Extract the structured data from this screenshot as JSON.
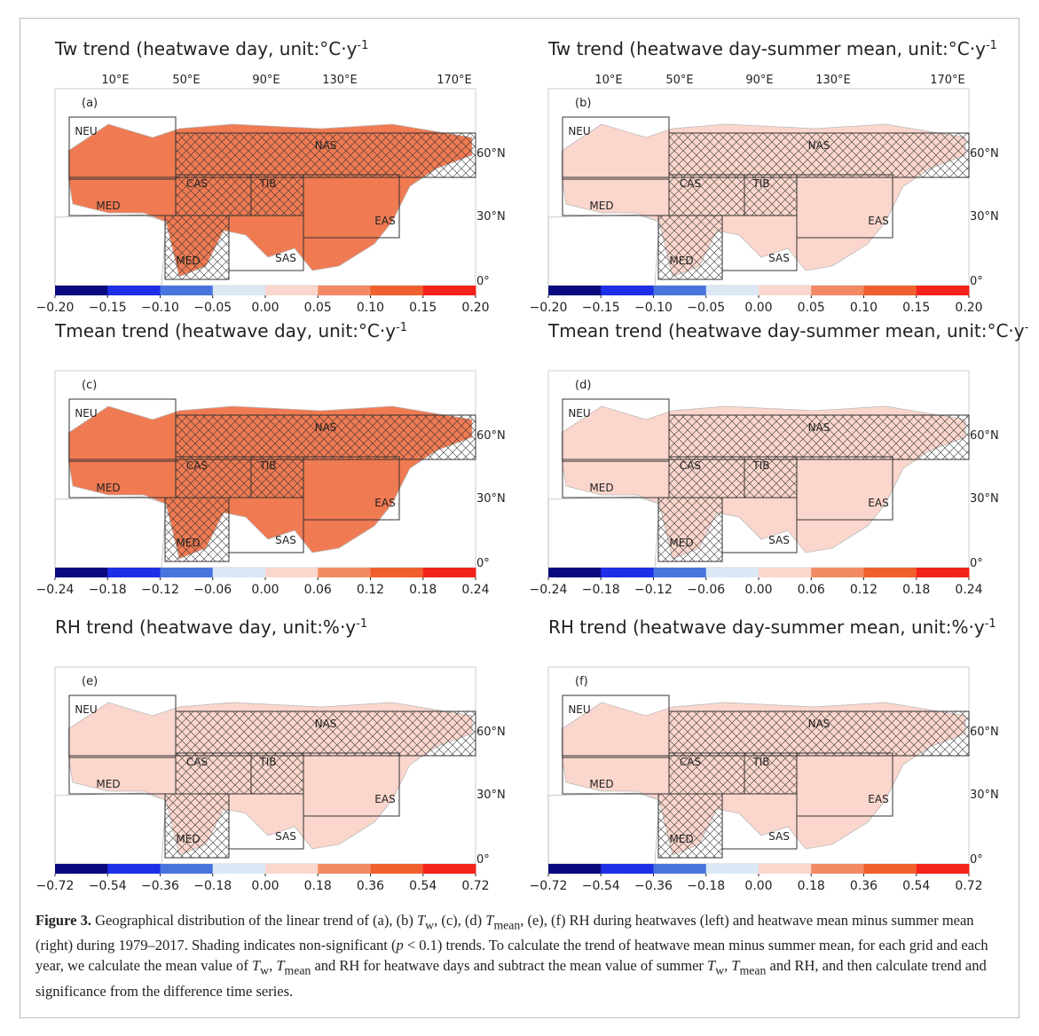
{
  "figure": {
    "lon_labels": [
      "10°E",
      "50°E",
      "90°E",
      "130°E",
      "170°E"
    ],
    "lat_labels": [
      "60°N",
      "30°N",
      "0°"
    ],
    "regions": [
      "NEU",
      "NAS",
      "MED",
      "CAS",
      "TIB",
      "EAS",
      "SAS",
      "MED"
    ],
    "colorbar_colors": [
      "#0a0a7e",
      "#1e2fe8",
      "#4a74dd",
      "#dbe8f5",
      "#fbd6cc",
      "#f28a63",
      "#f0602e",
      "#f2231a"
    ],
    "colorbars": [
      {
        "ticks": [
          {
            "value": -0.2,
            "label": "−0.20"
          },
          {
            "value": -0.15,
            "label": "−0.15"
          },
          {
            "value": -0.1,
            "label": "−0.10"
          },
          {
            "value": -0.05,
            "label": "−0.05"
          },
          {
            "value": 0,
            "label": "0.00"
          },
          {
            "value": 0.05,
            "label": "0.05"
          },
          {
            "value": 0.1,
            "label": "0.10"
          },
          {
            "value": 0.15,
            "label": "0.15"
          },
          {
            "value": 0.2,
            "label": "0.20"
          }
        ]
      },
      {
        "ticks": [
          {
            "value": -0.24,
            "label": "−0.24"
          },
          {
            "value": -0.18,
            "label": "−0.18"
          },
          {
            "value": -0.12,
            "label": "−0.12"
          },
          {
            "value": -0.06,
            "label": "−0.06"
          },
          {
            "value": 0,
            "label": "0.00"
          },
          {
            "value": 0.06,
            "label": "0.06"
          },
          {
            "value": 0.12,
            "label": "0.12"
          },
          {
            "value": 0.18,
            "label": "0.18"
          },
          {
            "value": 0.24,
            "label": "0.24"
          }
        ]
      },
      {
        "ticks": [
          {
            "value": -0.72,
            "label": "−0.72"
          },
          {
            "value": -0.54,
            "label": "−0.54"
          },
          {
            "value": -0.36,
            "label": "−0.36"
          },
          {
            "value": -0.18,
            "label": "−0.18"
          },
          {
            "value": 0,
            "label": "0.00"
          },
          {
            "value": 0.18,
            "label": "0.18"
          },
          {
            "value": 0.36,
            "label": "0.36"
          },
          {
            "value": 0.54,
            "label": "0.54"
          },
          {
            "value": 0.72,
            "label": "0.72"
          }
        ]
      }
    ],
    "panels": [
      {
        "label": "(a)",
        "title": "Tw trend (heatwave day, unit:°C·y",
        "title_sup": "-1",
        "shade_color": "#f07a52"
      },
      {
        "label": "(b)",
        "title": "Tw trend (heatwave day-summer mean, unit:°C·y",
        "title_sup": "-1",
        "shade_color": "#fbd6cc"
      },
      {
        "label": "(c)",
        "title": "Tmean trend (heatwave day, unit:°C·y",
        "title_sup": "-1",
        "shade_color": "#f07a52"
      },
      {
        "label": "(d)",
        "title": "Tmean trend (heatwave day-summer mean, unit:°C·y",
        "title_sup": "-",
        "shade_color": "#fbd6cc"
      },
      {
        "label": "(e)",
        "title": "RH trend (heatwave day, unit:%·y",
        "title_sup": "-1",
        "shade_color": "#fbd6cc"
      },
      {
        "label": "(f)",
        "title": "RH trend (heatwave day-summer mean, unit:%·y",
        "title_sup": "-1",
        "shade_color": "#fbd6cc"
      }
    ]
  },
  "caption": {
    "label": "Figure 3.",
    "parts": [
      " Geographical distribution of the linear trend of (a), (b) ",
      "T",
      "w",
      ", (c), (d) ",
      "T",
      "mean",
      ", (e), (f) RH during heatwaves (left) and heatwave mean minus summer mean (right) during 1979–2017. Shading indicates non-significant (",
      "p",
      " < 0.1) trends. To calculate the trend of heatwave mean minus summer mean, for each grid and each year, we calculate the mean value of ",
      "T",
      "w",
      ", ",
      "T",
      "mean",
      " and RH for heatwave days and subtract the mean value of summer ",
      "T",
      "w",
      ", ",
      "T",
      "mean",
      " and RH, and then calculate trend and significance from the difference time series."
    ]
  }
}
